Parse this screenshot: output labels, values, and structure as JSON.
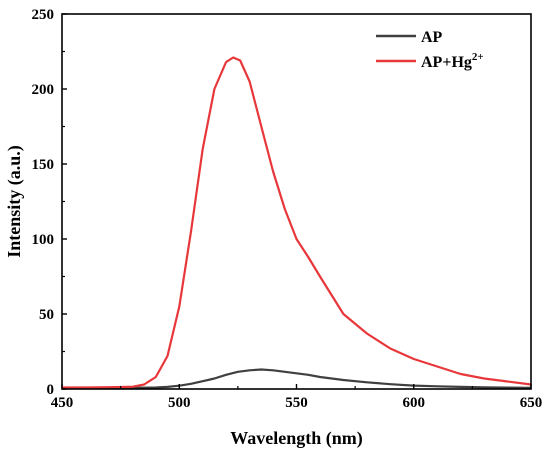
{
  "chart_data": {
    "type": "line",
    "xlabel": "Wavelength (nm)",
    "ylabel": "Intensity (a.u.)",
    "xlim": [
      450,
      650
    ],
    "ylim": [
      0,
      250
    ],
    "xticks": [
      "450",
      "500",
      "550",
      "600",
      "650"
    ],
    "yticks": [
      "0",
      "50",
      "100",
      "150",
      "200",
      "250"
    ],
    "grid": false,
    "legend_position": "top-right",
    "series": [
      {
        "name": "AP",
        "color": "#404040",
        "legend_label": {
          "base": "AP",
          "sup": ""
        },
        "x": [
          450,
          460,
          470,
          480,
          490,
          495,
          500,
          505,
          510,
          515,
          520,
          525,
          530,
          535,
          540,
          545,
          550,
          555,
          560,
          570,
          580,
          590,
          600,
          610,
          620,
          630,
          640,
          650
        ],
        "y": [
          0.5,
          0.5,
          0.6,
          0.7,
          1.0,
          1.4,
          2.2,
          3.5,
          5.2,
          7.0,
          9.5,
          11.5,
          12.5,
          13.0,
          12.5,
          11.5,
          10.5,
          9.5,
          8.0,
          6.0,
          4.5,
          3.2,
          2.3,
          1.8,
          1.4,
          1.1,
          0.9,
          0.8
        ]
      },
      {
        "name": "AP+Hg2+",
        "color": "#e8373a",
        "legend_label": {
          "base": "AP+Hg",
          "sup": "2+"
        },
        "x": [
          450,
          460,
          470,
          480,
          485,
          490,
          495,
          500,
          505,
          510,
          515,
          520,
          523,
          526,
          530,
          535,
          540,
          545,
          550,
          555,
          560,
          570,
          580,
          590,
          600,
          610,
          620,
          630,
          640,
          650
        ],
        "y": [
          1,
          1,
          1.2,
          1.5,
          3,
          8,
          22,
          55,
          105,
          160,
          200,
          218,
          221,
          219,
          205,
          175,
          145,
          120,
          100,
          88,
          75,
          50,
          37,
          27,
          20,
          15,
          10,
          7,
          5,
          3
        ]
      }
    ]
  }
}
